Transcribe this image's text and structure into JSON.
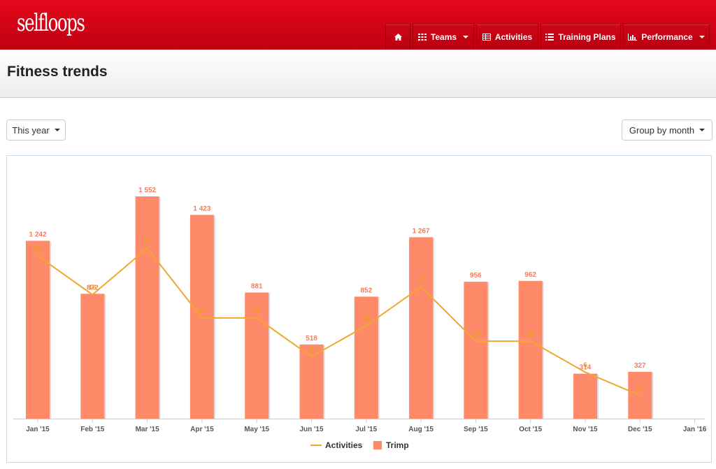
{
  "app": {
    "logo": "selfloops"
  },
  "nav": {
    "home_icon": "home-icon",
    "items": [
      {
        "label": "Teams",
        "icon": "grid-icon",
        "dropdown": true
      },
      {
        "label": "Activities",
        "icon": "table-icon",
        "dropdown": false
      },
      {
        "label": "Training Plans",
        "icon": "list-icon",
        "dropdown": false
      },
      {
        "label": "Performance",
        "icon": "bar-chart-icon",
        "dropdown": true
      }
    ]
  },
  "page": {
    "title": "Fitness trends"
  },
  "filters": {
    "period": "This year",
    "grouping": "Group by month"
  },
  "colors": {
    "brand": "#d0021b",
    "bar": "#fe8a69",
    "line": "#f0a830",
    "bar_label": "#f77a5c",
    "line_label": "#e8a020"
  },
  "chart_data": {
    "type": "bar",
    "x_ticks": [
      "Jan '15",
      "Feb '15",
      "Mar '15",
      "Apr '15",
      "May '15",
      "Jun '15",
      "Jul '15",
      "Aug '15",
      "Sep '15",
      "Oct '15",
      "Nov '15",
      "Dec '15",
      "Jan '16"
    ],
    "categories": [
      "Jan '15",
      "Feb '15",
      "Mar '15",
      "Apr '15",
      "May '15",
      "Jun '15",
      "Jul '15",
      "Aug '15",
      "Sep '15",
      "Oct '15",
      "Nov '15",
      "Dec '15"
    ],
    "series": [
      {
        "name": "Trimp",
        "type": "bar",
        "values": [
          1242,
          872,
          1552,
          1423,
          881,
          518,
          852,
          1267,
          956,
          962,
          314,
          327
        ],
        "labels": [
          "1 242",
          "872",
          "1 552",
          "1 423",
          "881",
          "518",
          "852",
          "1 267",
          "956",
          "962",
          "314",
          "327"
        ]
      },
      {
        "name": "Activities",
        "type": "line",
        "values": [
          21,
          16,
          22,
          13,
          13,
          8,
          12,
          17,
          10,
          10,
          6,
          3
        ],
        "labels": [
          "21",
          "16",
          "22",
          "13",
          "13",
          "8",
          "12",
          "17",
          "10",
          "10",
          "6",
          "3"
        ]
      }
    ],
    "ylim_trimp": [
      0,
      1552
    ],
    "ylim_activities": [
      0,
      22
    ],
    "legend": {
      "placement": "bottom-center",
      "items": [
        "Activities",
        "Trimp"
      ]
    },
    "grid": false
  }
}
